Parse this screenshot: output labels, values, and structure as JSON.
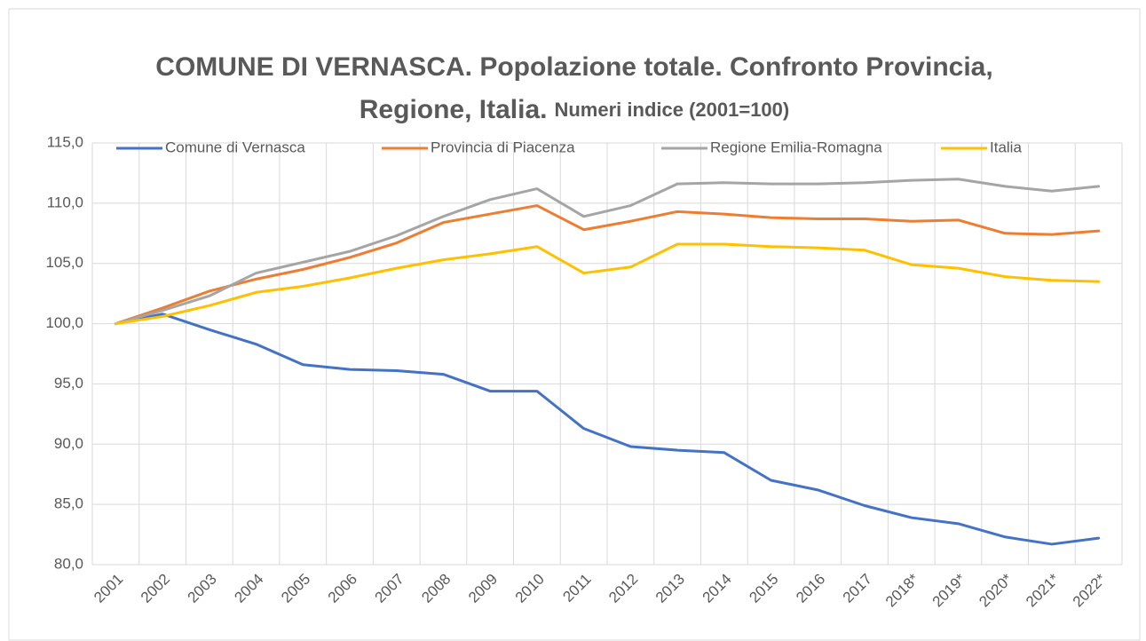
{
  "chart_data": {
    "type": "line",
    "title": [
      "COMUNE DI VERNASCA. Popolazione totale. Confronto Provincia,",
      "Regione, Italia."
    ],
    "subtitle": "Numeri indice (2001=100)",
    "categories": [
      "2001",
      "2002",
      "2003",
      "2004",
      "2005",
      "2006",
      "2007",
      "2008",
      "2009",
      "2010",
      "2011",
      "2012",
      "2013",
      "2014",
      "2015",
      "2016",
      "2017",
      "2018*",
      "2019*",
      "2020*",
      "2021*",
      "2022*"
    ],
    "series": [
      {
        "name": "Comune di Vernasca",
        "color": "#4472c4",
        "values": [
          100,
          100.8,
          99.5,
          98.3,
          96.6,
          96.2,
          96.1,
          95.8,
          94.4,
          94.4,
          91.3,
          89.8,
          89.5,
          89.3,
          87.0,
          86.2,
          84.9,
          83.9,
          83.4,
          82.3,
          81.7,
          82.2
        ]
      },
      {
        "name": "Provincia di Piacenza",
        "color": "#ed7d31",
        "values": [
          100,
          101.3,
          102.7,
          103.7,
          104.5,
          105.5,
          106.7,
          108.4,
          109.1,
          109.8,
          107.8,
          108.5,
          109.3,
          109.1,
          108.8,
          108.7,
          108.7,
          108.5,
          108.6,
          107.5,
          107.4,
          107.7
        ]
      },
      {
        "name": "Regione Emilia-Romagna",
        "color": "#a5a5a5",
        "values": [
          100,
          101.1,
          102.3,
          104.2,
          105.1,
          106.0,
          107.3,
          108.9,
          110.3,
          111.2,
          108.9,
          109.8,
          111.6,
          111.7,
          111.6,
          111.6,
          111.7,
          111.9,
          112.0,
          111.4,
          111.0,
          111.4
        ]
      },
      {
        "name": "Italia",
        "color": "#ffc000",
        "values": [
          100,
          100.6,
          101.5,
          102.6,
          103.1,
          103.8,
          104.6,
          105.3,
          105.8,
          106.4,
          104.2,
          104.7,
          106.6,
          106.6,
          106.4,
          106.3,
          106.1,
          104.9,
          104.6,
          103.9,
          103.6,
          103.5
        ]
      }
    ],
    "ylim": [
      80,
      115
    ],
    "yticks": [
      {
        "value": 80,
        "label": "80,0"
      },
      {
        "value": 85,
        "label": "85,0"
      },
      {
        "value": 90,
        "label": "90,0"
      },
      {
        "value": 95,
        "label": "95,0"
      },
      {
        "value": 100,
        "label": "100,0"
      },
      {
        "value": 105,
        "label": "105,0"
      },
      {
        "value": 110,
        "label": "110,0"
      },
      {
        "value": 115,
        "label": "115,0"
      }
    ],
    "grid": true,
    "legend": "top"
  }
}
